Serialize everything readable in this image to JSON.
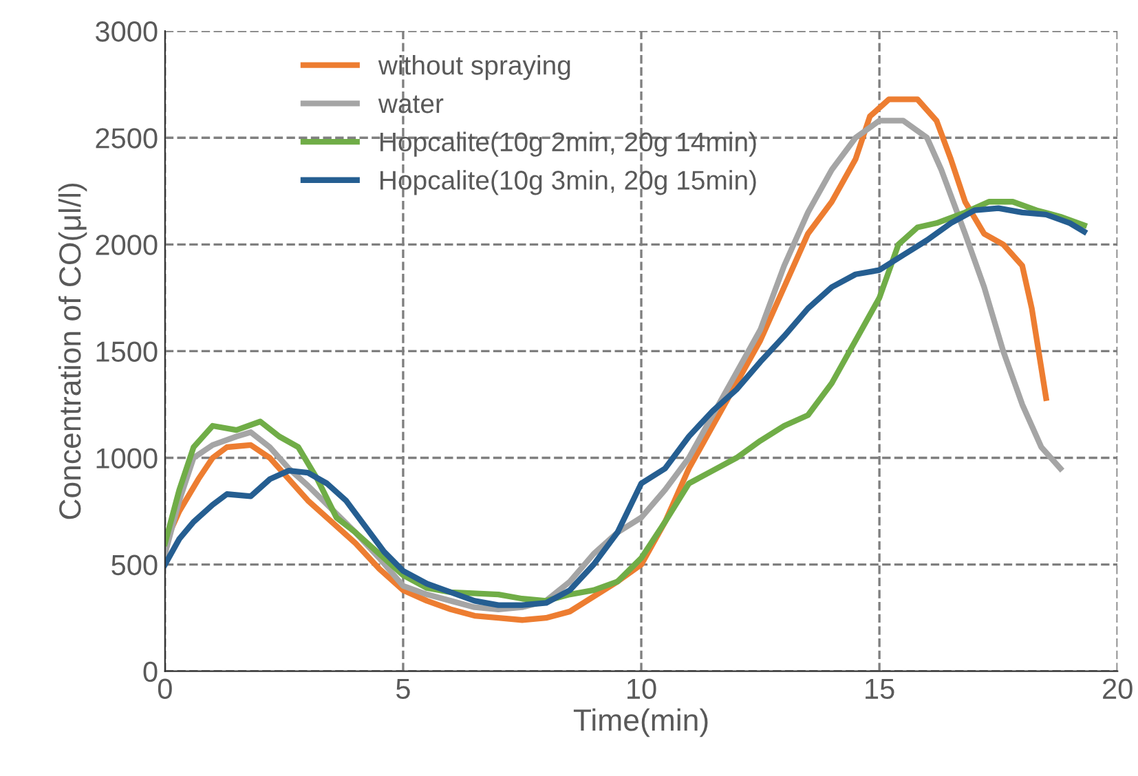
{
  "chart_data": {
    "type": "line",
    "xlabel": "Time(min)",
    "ylabel": "Concentration of CO(μl/l)",
    "xlim": [
      0,
      20
    ],
    "xticks": [
      0,
      5,
      10,
      15,
      20
    ],
    "ylim": [
      0,
      3000
    ],
    "yticks": [
      0,
      500,
      1000,
      1500,
      2000,
      2500,
      3000
    ],
    "grid": true,
    "legend": "top left",
    "marker": "none",
    "line_style": "solid",
    "series": [
      {
        "name": "without spraying",
        "color": "#ed7d31",
        "x": [
          0,
          0.3,
          0.7,
          1,
          1.3,
          1.8,
          2.2,
          2.6,
          3,
          3.5,
          4,
          4.5,
          5,
          5.5,
          6,
          6.5,
          7,
          7.5,
          8,
          8.5,
          9,
          9.5,
          10,
          10.5,
          11,
          11.5,
          12,
          12.5,
          13,
          13.5,
          14,
          14.5,
          14.8,
          15.2,
          15.8,
          16.2,
          16.5,
          16.8,
          17.2,
          17.6,
          18,
          18.2,
          18.5
        ],
        "values": [
          600,
          750,
          900,
          1000,
          1050,
          1060,
          1000,
          900,
          800,
          700,
          600,
          480,
          380,
          330,
          290,
          260,
          250,
          240,
          250,
          280,
          350,
          420,
          500,
          700,
          950,
          1150,
          1350,
          1550,
          1800,
          2050,
          2200,
          2400,
          2600,
          2680,
          2680,
          2580,
          2400,
          2200,
          2050,
          2000,
          1900,
          1700,
          1280
        ]
      },
      {
        "name": "water",
        "color": "#a5a5a5",
        "x": [
          0,
          0.3,
          0.6,
          1,
          1.5,
          1.8,
          2.2,
          2.6,
          3,
          3.5,
          4,
          4.5,
          5,
          5.5,
          6,
          6.5,
          7,
          7.5,
          8,
          8.5,
          9,
          9.5,
          10,
          10.5,
          11,
          11.5,
          12,
          12.5,
          13,
          13.5,
          14,
          14.5,
          15,
          15.5,
          16,
          16.3,
          16.8,
          17.2,
          17.6,
          18,
          18.4,
          18.8
        ],
        "values": [
          550,
          800,
          1000,
          1060,
          1100,
          1120,
          1050,
          950,
          870,
          760,
          650,
          530,
          400,
          360,
          330,
          300,
          290,
          300,
          330,
          420,
          550,
          650,
          720,
          850,
          1000,
          1200,
          1400,
          1600,
          1900,
          2150,
          2350,
          2500,
          2580,
          2580,
          2500,
          2350,
          2050,
          1800,
          1500,
          1250,
          1050,
          950
        ]
      },
      {
        "name": "Hopcalite(10g 2min, 20g 14min)",
        "color": "#70ad47",
        "x": [
          0,
          0.3,
          0.6,
          1,
          1.5,
          2,
          2.4,
          2.8,
          3.2,
          3.6,
          4,
          4.5,
          5,
          5.5,
          6,
          7,
          7.5,
          8,
          8.5,
          9,
          9.5,
          10,
          10.5,
          11,
          11.5,
          12,
          12.5,
          13,
          13.5,
          14,
          14.5,
          15,
          15.4,
          15.8,
          16.2,
          16.8,
          17.3,
          17.8,
          18.3,
          18.8,
          19.3
        ],
        "values": [
          600,
          850,
          1050,
          1150,
          1130,
          1170,
          1100,
          1050,
          900,
          720,
          650,
          550,
          450,
          390,
          370,
          360,
          340,
          330,
          360,
          380,
          420,
          530,
          700,
          880,
          940,
          1000,
          1080,
          1150,
          1200,
          1350,
          1550,
          1750,
          2000,
          2080,
          2100,
          2150,
          2200,
          2200,
          2160,
          2130,
          2090
        ]
      },
      {
        "name": "Hopcalite(10g 3min, 20g 15min)",
        "color": "#255e91",
        "x": [
          0,
          0.3,
          0.6,
          1,
          1.3,
          1.8,
          2.2,
          2.6,
          3,
          3.4,
          3.8,
          4.2,
          4.6,
          5,
          5.5,
          6,
          6.5,
          7,
          7.5,
          8,
          8.5,
          9,
          9.5,
          10,
          10.5,
          11,
          11.5,
          12,
          12.5,
          13,
          13.5,
          14,
          14.5,
          15,
          15.5,
          16,
          16.5,
          17,
          17.5,
          18,
          18.5,
          19,
          19.3
        ],
        "values": [
          500,
          620,
          700,
          780,
          830,
          820,
          900,
          940,
          930,
          880,
          800,
          680,
          560,
          470,
          410,
          370,
          330,
          310,
          310,
          320,
          380,
          500,
          650,
          880,
          950,
          1100,
          1220,
          1320,
          1450,
          1570,
          1700,
          1800,
          1860,
          1880,
          1950,
          2020,
          2100,
          2160,
          2170,
          2150,
          2140,
          2100,
          2060
        ]
      }
    ]
  }
}
